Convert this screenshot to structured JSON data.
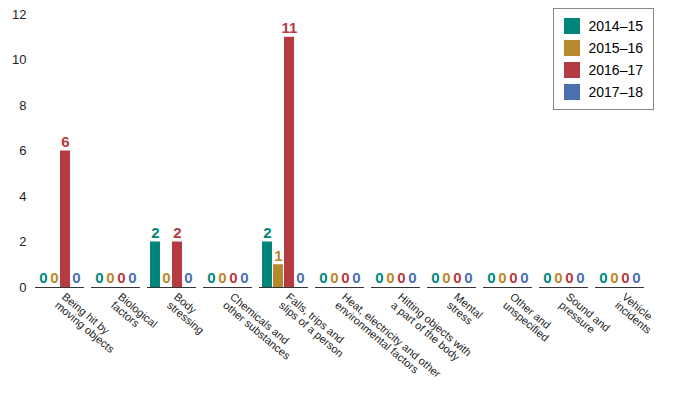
{
  "chart_data": {
    "type": "bar",
    "categories": [
      "Being hit by\nmoving objects",
      "Biological\nfactors",
      "Body\nstressing",
      "Chemicals and\nother substances",
      "Falls, trips and\nslips of a person",
      "Heat, electricity and other\nenvironmental factors",
      "Hitting objects with\na part of the body",
      "Mental\nstress",
      "Other and\nunspecified",
      "Sound and\npressure",
      "Vehicle\nincidents"
    ],
    "series": [
      {
        "name": "2014–15",
        "color": "#00857a",
        "values": [
          0,
          0,
          2,
          0,
          2,
          0,
          0,
          0,
          0,
          0,
          0
        ]
      },
      {
        "name": "2015–16",
        "color": "#b8892c",
        "values": [
          0,
          0,
          0,
          0,
          1,
          0,
          0,
          0,
          0,
          0,
          0
        ]
      },
      {
        "name": "2016–17",
        "color": "#b63a42",
        "values": [
          6,
          0,
          2,
          0,
          11,
          0,
          0,
          0,
          0,
          0,
          0
        ]
      },
      {
        "name": "2017–18",
        "color": "#4a70b0",
        "values": [
          0,
          0,
          0,
          0,
          0,
          0,
          0,
          0,
          0,
          0,
          0
        ]
      }
    ],
    "ylim": [
      0,
      12
    ],
    "yticks": [
      0,
      2,
      4,
      6,
      8,
      10,
      12
    ],
    "grid": false,
    "legend": "top-right",
    "data_labels": true
  }
}
